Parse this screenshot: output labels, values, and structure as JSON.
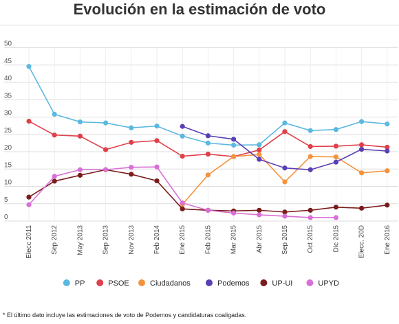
{
  "title": "Evolución en la estimación de voto",
  "footnote": "* El último dato incluye las estimaciones de voto de Podemos y candidaturas coaligadas.",
  "chart_data": {
    "type": "line",
    "title": "Evolución en la estimación de voto",
    "xlabel": "",
    "ylabel": "",
    "ylim": [
      0,
      50
    ],
    "yticks": [
      0,
      5,
      10,
      15,
      20,
      25,
      30,
      35,
      40,
      45,
      50
    ],
    "grid": true,
    "legend_position": "bottom",
    "categories": [
      "Elecc 2011",
      "Sep 2012",
      "May 2013",
      "Sep 2013",
      "Nov 2013",
      "Feb 2014",
      "Ene 2015",
      "Feb 2015",
      "Mar 2015",
      "Abr 2015",
      "Sep 2015",
      "Oct 2015",
      "Dic 2015",
      "Elecc. 20D",
      "Ene 2016"
    ],
    "series": [
      {
        "name": "PP",
        "color": "#5bb8e0",
        "values": [
          44.6,
          30.8,
          28.6,
          28.3,
          26.9,
          27.4,
          24.5,
          22.5,
          21.9,
          22.0,
          28.3,
          26.1,
          26.4,
          28.7,
          28.0
        ]
      },
      {
        "name": "PSOE",
        "color": "#e0404a",
        "values": [
          28.8,
          24.8,
          24.5,
          20.6,
          22.7,
          23.2,
          18.7,
          19.3,
          18.6,
          20.5,
          25.8,
          21.5,
          21.6,
          22.0,
          21.3
        ]
      },
      {
        "name": "Ciudadanos",
        "color": "#f5923e",
        "values": [
          null,
          null,
          null,
          null,
          null,
          null,
          4.8,
          13.3,
          18.6,
          19.2,
          11.3,
          18.6,
          18.5,
          13.9,
          14.5
        ]
      },
      {
        "name": "Podemos",
        "color": "#5a3fb5",
        "values": [
          null,
          null,
          null,
          null,
          null,
          null,
          27.3,
          24.6,
          23.6,
          17.8,
          15.3,
          14.8,
          17.0,
          20.7,
          20.2
        ]
      },
      {
        "name": "UP-UI",
        "color": "#7a1c1c",
        "values": [
          6.9,
          11.5,
          13.2,
          14.8,
          13.5,
          11.6,
          3.5,
          3.1,
          2.9,
          3.1,
          2.6,
          3.1,
          4.0,
          3.7,
          4.6
        ]
      },
      {
        "name": "UPYD",
        "color": "#d96fd6",
        "values": [
          4.7,
          12.9,
          14.8,
          14.8,
          15.5,
          15.6,
          5.2,
          3.1,
          2.3,
          1.8,
          1.4,
          1.0,
          1.0,
          null,
          null
        ]
      }
    ]
  }
}
